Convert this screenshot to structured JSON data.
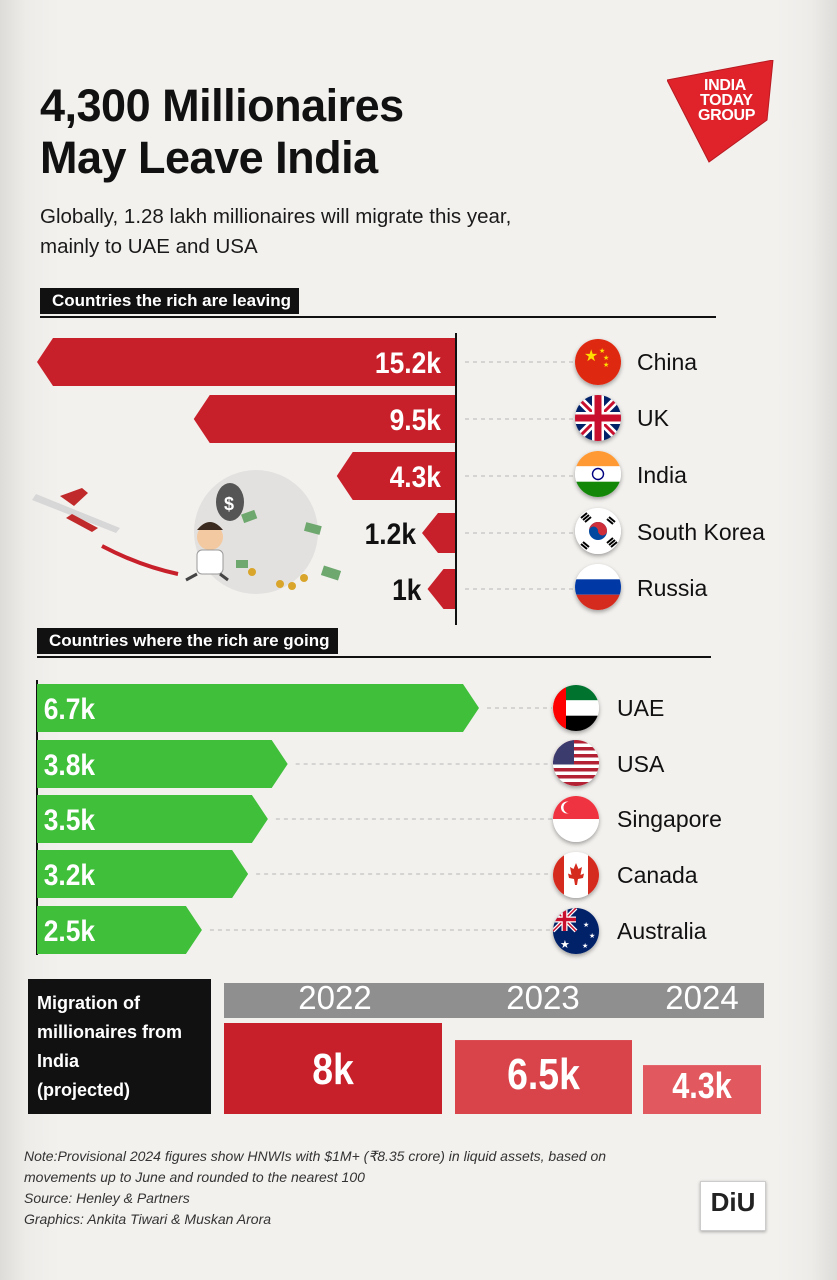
{
  "title_line1": "4,300 Millionaires",
  "title_line2": "May Leave India",
  "subtitle_line1": "Globally, 1.28 lakh millionaires will migrate this year,",
  "subtitle_line2": "mainly to UAE and USA",
  "logo": {
    "line1": "INDIA",
    "line2": "TODAY",
    "line3": "GROUP"
  },
  "diu_logo": "DiU",
  "colors": {
    "leaving": "#c8202a",
    "going": "#3fbf3a",
    "years": [
      "#c8202a",
      "#d9444b",
      "#e2585f"
    ],
    "year_header": "#8f8f8f"
  },
  "chart_data": [
    {
      "type": "bar",
      "title": "Countries the rich are leaving",
      "categories": [
        "China",
        "UK",
        "India",
        "South Korea",
        "Russia"
      ],
      "values": [
        15.2,
        9.5,
        4.3,
        1.2,
        1.0
      ],
      "value_labels": [
        "15.2k",
        "9.5k",
        "4.3k",
        "1.2k",
        "1k"
      ],
      "unit": "k",
      "icons": [
        "china-flag-icon",
        "uk-flag-icon",
        "india-flag-icon",
        "south-korea-flag-icon",
        "russia-flag-icon"
      ]
    },
    {
      "type": "bar",
      "title": "Countries where the rich are going",
      "categories": [
        "UAE",
        "USA",
        "Singapore",
        "Canada",
        "Australia"
      ],
      "values": [
        6.7,
        3.8,
        3.5,
        3.2,
        2.5
      ],
      "value_labels": [
        "6.7k",
        "3.8k",
        "3.5k",
        "3.2k",
        "2.5k"
      ],
      "unit": "k",
      "icons": [
        "uae-flag-icon",
        "usa-flag-icon",
        "singapore-flag-icon",
        "canada-flag-icon",
        "australia-flag-icon"
      ]
    },
    {
      "type": "bar",
      "title": "Migration of millionaires from India (projected)",
      "title_lines": [
        "Migration of",
        "millionaires from",
        "India",
        "(projected)"
      ],
      "categories": [
        "2022",
        "2023",
        "2024"
      ],
      "values": [
        8,
        6.5,
        4.3
      ],
      "value_labels": [
        "8k",
        "6.5k",
        "4.3k"
      ],
      "unit": "k"
    }
  ],
  "note_line1": "Note:Provisional 2024 figures show HNWIs with $1M+ (₹8.35 crore) in liquid assets, based on",
  "note_line2": "movements up to June and rounded to the nearest 100",
  "source": "Source: Henley & Partners",
  "graphics": "Graphics: Ankita Tiwari & Muskan Arora"
}
